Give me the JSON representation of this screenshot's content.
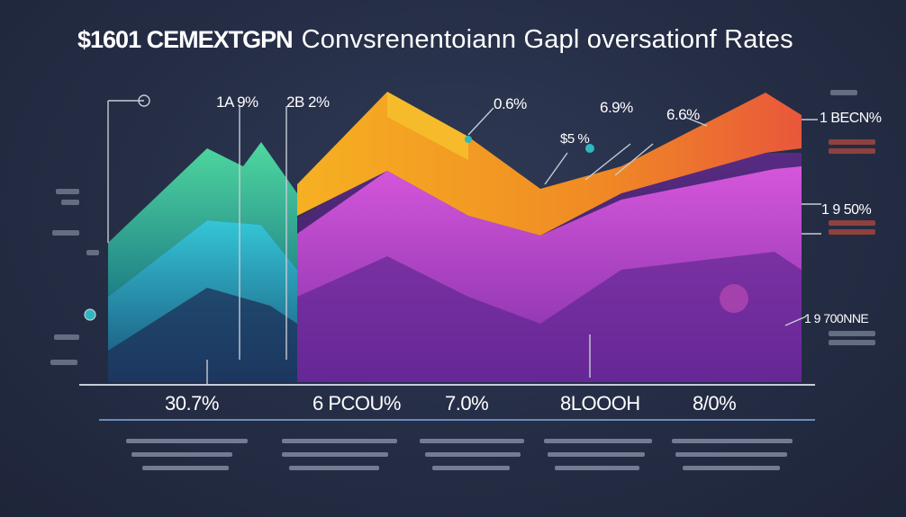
{
  "title": {
    "part1": "$1601 CEMEXTGPN",
    "part2": "Convsrenentoiann Gapl oversationf Rates"
  },
  "chart_data": {
    "type": "area",
    "series": [
      {
        "color": "#3ec9a0",
        "values": [
          0.58,
          0.78,
          0.7,
          0.84,
          0.62,
          0.55,
          0.5,
          0.66,
          0.8
        ]
      },
      {
        "color": "#f29a1f",
        "values": [
          0.3,
          0.52,
          0.72,
          0.96,
          0.8,
          0.6,
          0.66,
          0.72,
          0.94
        ]
      },
      {
        "color": "#c14fcf",
        "values": [
          0.2,
          0.34,
          0.5,
          0.68,
          0.58,
          0.45,
          0.52,
          0.58,
          0.76
        ]
      }
    ],
    "point_labels": [
      "1A 9%",
      "2B 2%",
      "0.6%",
      "6.9%",
      "6.6%",
      "1 BECN%",
      "1 9 50%",
      "1 9 700NNE",
      "$5 %"
    ],
    "x_labels": [
      "30.7%",
      "6 PCOU%",
      "7.0%",
      "8LOOOH",
      "8/0%"
    ]
  },
  "colors": {
    "background": "#252d45",
    "accent_teal": "#3ec9a0",
    "accent_orange": "#f29a1f",
    "accent_purple": "#8a3fb2",
    "accent_red": "#e8543a"
  }
}
